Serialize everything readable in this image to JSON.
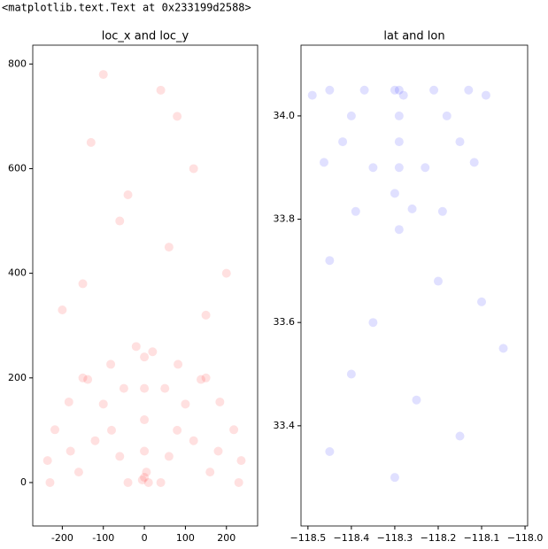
{
  "output_text": "<matplotlib.text.Text at 0x233199d2588>",
  "chart_data": [
    {
      "type": "scatter",
      "title": "loc_x and loc_y",
      "color": "#ff0000",
      "xlim": [
        -272,
        276
      ],
      "ylim": [
        -83,
        836
      ],
      "xticks": [
        -200,
        -100,
        0,
        100,
        200
      ],
      "yticks": [
        0,
        200,
        400,
        600,
        800
      ],
      "x": [
        236,
        218,
        184,
        138,
        82,
        0,
        -82,
        -138,
        -184,
        -218,
        -236,
        0,
        5,
        -5,
        10,
        0,
        0,
        0,
        -60,
        60,
        -120,
        120,
        -100,
        100,
        -150,
        150,
        -160,
        160,
        -230,
        230,
        -50,
        50,
        -80,
        80,
        40,
        -40,
        -180,
        180,
        20,
        -20,
        -100,
        40,
        -130,
        120,
        -60,
        60,
        -200,
        200,
        -150,
        150,
        80,
        -40
      ],
      "y": [
        42,
        101,
        154,
        197,
        226,
        240,
        226,
        197,
        154,
        101,
        42,
        10,
        20,
        5,
        0,
        60,
        120,
        180,
        50,
        50,
        80,
        80,
        150,
        150,
        200,
        200,
        20,
        20,
        0,
        0,
        180,
        180,
        100,
        100,
        0,
        0,
        60,
        60,
        250,
        260,
        780,
        750,
        650,
        600,
        500,
        450,
        330,
        400,
        380,
        320,
        700,
        550
      ]
    },
    {
      "type": "scatter",
      "title": "lat and lon",
      "color": "#0000ff",
      "xlim": [
        -118.516,
        -117.994
      ],
      "ylim": [
        33.206,
        34.137
      ],
      "xticks": [
        {
          "value": -118.5,
          "label": "−118.5"
        },
        {
          "value": -118.4,
          "label": "−118.4"
        },
        {
          "value": -118.3,
          "label": "−118.3"
        },
        {
          "value": -118.2,
          "label": "−118.2"
        },
        {
          "value": -118.1,
          "label": "−118.1"
        },
        {
          "value": -118.0,
          "label": "−118.0"
        }
      ],
      "yticks": [
        33.4,
        33.6,
        33.8,
        {
          "value": 34,
          "label": "34.0"
        }
      ],
      "x": [
        -118.09,
        -118.117,
        -118.19,
        -118.29,
        -118.39,
        -118.463,
        -118.49,
        -118.29,
        -118.28,
        -118.3,
        -118.29,
        -118.29,
        -118.29,
        -118.4,
        -118.18,
        -118.35,
        -118.23,
        -118.45,
        -118.13,
        -118.37,
        -118.21,
        -118.42,
        -118.15,
        -118.3,
        -118.26,
        -118.45,
        -118.2,
        -118.35,
        -118.1,
        -118.4,
        -118.25,
        -118.3,
        -118.45,
        -118.15,
        -118.05
      ],
      "y": [
        34.04,
        33.91,
        33.815,
        33.78,
        33.815,
        33.91,
        34.04,
        34.05,
        34.04,
        34.05,
        34.0,
        33.95,
        33.9,
        34.0,
        34.0,
        33.9,
        33.9,
        34.05,
        34.05,
        34.05,
        34.05,
        33.95,
        33.95,
        33.85,
        33.82,
        33.72,
        33.68,
        33.6,
        33.64,
        33.5,
        33.45,
        33.3,
        33.35,
        33.38,
        33.55
      ]
    }
  ]
}
